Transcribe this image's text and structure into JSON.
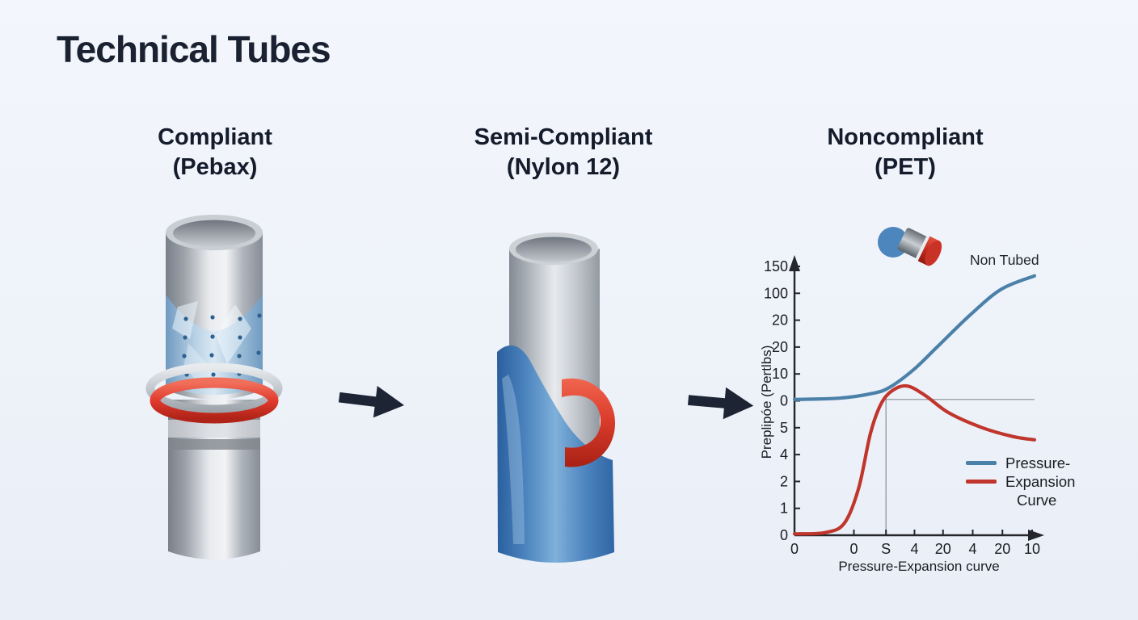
{
  "page": {
    "title": "Technical Tubes",
    "background": "#eef2f9",
    "text_color": "#1a2130"
  },
  "columns": [
    {
      "line1": "Compliant",
      "line2": "(Pebax)"
    },
    {
      "line1": "Semi-Compliant",
      "line2": "(Nylon 12)"
    },
    {
      "line1": "Noncompliant",
      "line2": "(PET)"
    }
  ],
  "arrows": {
    "icon": "arrow-right-icon",
    "color": "#1d2433",
    "count": 2
  },
  "tubes": [
    {
      "name": "compliant-tube",
      "body_color": "#c6cbd1",
      "band_color": "#9dc0de",
      "ring_color": "#e23b2e"
    },
    {
      "name": "semi-compliant-tube",
      "body_color": "#c6cbd1",
      "sleeve_color": "#3d77b2",
      "band_color": "#d93a2c"
    }
  ],
  "chart_data": {
    "type": "line",
    "title": "",
    "xlabel": "Pressure-Expansion curve",
    "ylabel": "Preplipóe (Pertlbs)",
    "annotation": "Non Tubed",
    "tube_icon": "mini-tube-icon",
    "x_range": [
      0,
      10.4
    ],
    "y_range": [
      0,
      10.3
    ],
    "grid": false,
    "axis_color": "#24262b",
    "x_ticks": [
      {
        "pos": 0,
        "label": "0"
      },
      {
        "pos": 2.5,
        "label": "0"
      },
      {
        "pos": 3.85,
        "label": "S"
      },
      {
        "pos": 5.05,
        "label": "4"
      },
      {
        "pos": 6.25,
        "label": "20"
      },
      {
        "pos": 7.5,
        "label": "4"
      },
      {
        "pos": 8.75,
        "label": "20"
      },
      {
        "pos": 10,
        "label": "10"
      }
    ],
    "y_ticks": [
      {
        "pos": 0,
        "label": "0"
      },
      {
        "pos": 1,
        "label": "1"
      },
      {
        "pos": 2,
        "label": "2"
      },
      {
        "pos": 3,
        "label": "4"
      },
      {
        "pos": 4,
        "label": "5"
      },
      {
        "pos": 5,
        "label": "0"
      },
      {
        "pos": 6,
        "label": "10"
      },
      {
        "pos": 7,
        "label": "20"
      },
      {
        "pos": 8,
        "label": "20"
      },
      {
        "pos": 9,
        "label": "100"
      },
      {
        "pos": 10,
        "label": "150"
      }
    ],
    "legend": {
      "position": "lower-right",
      "entries": [
        {
          "label": "Pressure-",
          "color": "#4b80a8"
        },
        {
          "label": "Expansion",
          "color": "#c0352c"
        },
        {
          "label": "Curve",
          "color": null
        }
      ]
    },
    "series": [
      {
        "name": "Pressure curve",
        "color": "#4b80a8",
        "points": [
          [
            0,
            5.05
          ],
          [
            1.9,
            5.1
          ],
          [
            3.3,
            5.28
          ],
          [
            4.0,
            5.5
          ],
          [
            5.0,
            6.15
          ],
          [
            6.0,
            7.0
          ],
          [
            7.4,
            8.2
          ],
          [
            8.7,
            9.15
          ],
          [
            10.1,
            9.65
          ]
        ]
      },
      {
        "name": "Expansion curve",
        "color": "#c0352c",
        "points": [
          [
            0,
            0.05
          ],
          [
            1.3,
            0.1
          ],
          [
            2.1,
            0.45
          ],
          [
            2.7,
            1.75
          ],
          [
            3.2,
            3.8
          ],
          [
            3.65,
            4.9
          ],
          [
            4.15,
            5.4
          ],
          [
            4.75,
            5.55
          ],
          [
            5.5,
            5.2
          ],
          [
            6.5,
            4.55
          ],
          [
            7.9,
            4.0
          ],
          [
            9.2,
            3.67
          ],
          [
            10.1,
            3.55
          ]
        ]
      }
    ],
    "reference_lines": {
      "color": "#8a8f98",
      "vertical": {
        "x": 3.85,
        "y_from": 0,
        "y_to": 5.05
      },
      "horizontal": {
        "y": 5.05,
        "x_from": 3.85,
        "x_to": 10.1
      }
    }
  }
}
